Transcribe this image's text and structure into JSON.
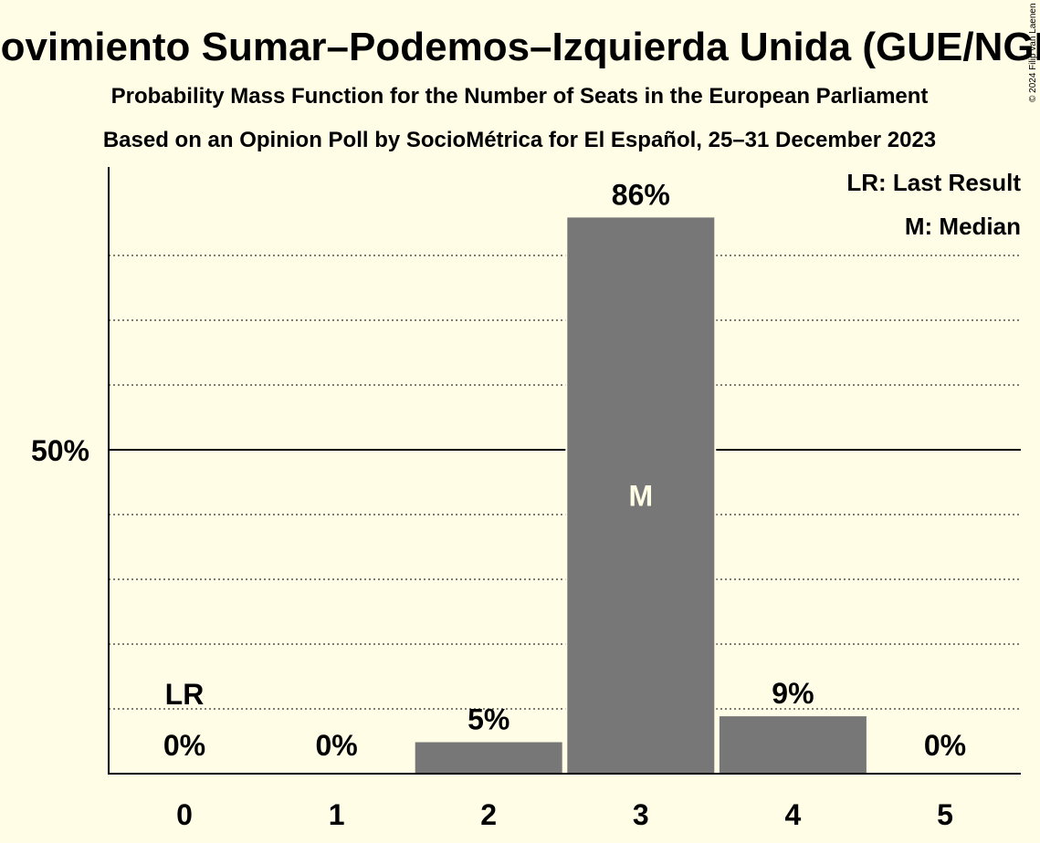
{
  "title": "Movimiento Sumar–Podemos–Izquierda Unida (GUE/NGL)",
  "subtitle1": "Probability Mass Function for the Number of Seats in the European Parliament",
  "subtitle2": "Based on an Opinion Poll by SocioMétrica for El Español, 25–31 December 2023",
  "copyright": "© 2024 Filip van Laenen",
  "legend": {
    "last_result": "LR: Last Result",
    "median": "M: Median"
  },
  "colors": {
    "background": "#FFFDE6",
    "bar": "#777777",
    "axis": "#000000"
  },
  "chart_data": {
    "type": "bar",
    "categories": [
      "0",
      "1",
      "2",
      "3",
      "4",
      "5"
    ],
    "values": [
      0,
      0,
      5,
      86,
      9,
      0
    ],
    "value_labels": [
      "0%",
      "0%",
      "5%",
      "86%",
      "9%",
      "0%"
    ],
    "ylim": [
      0,
      94
    ],
    "yticks": [
      {
        "value": 50,
        "label": "50%"
      }
    ],
    "gridlines": [
      10,
      20,
      30,
      40,
      60,
      70,
      80
    ],
    "median_category": "3",
    "median_marker": "M",
    "last_result_category": "0",
    "last_result_marker": "LR",
    "grid": true,
    "legend_position": "top-right"
  }
}
